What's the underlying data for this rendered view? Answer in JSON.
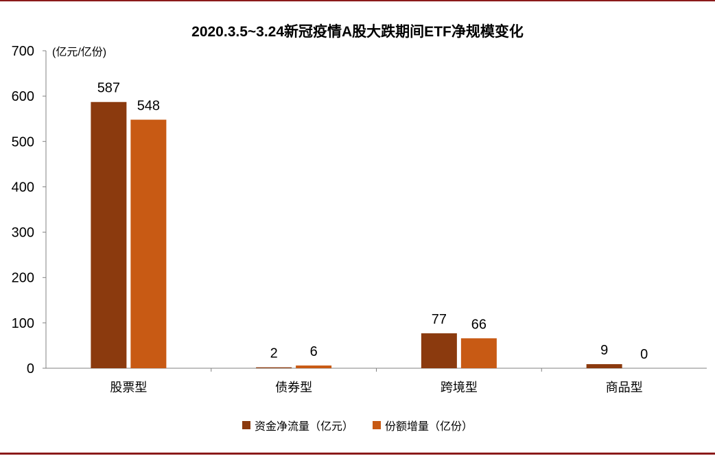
{
  "chart_data": {
    "type": "bar",
    "title": "2020.3.5~3.24新冠疫情A股大跌期间ETF净规模变化",
    "unit_label": "(亿元/亿份)",
    "categories": [
      "股票型",
      "债券型",
      "跨境型",
      "商品型"
    ],
    "series": [
      {
        "name": "资金净流量（亿元）",
        "color": "#8B3A0E",
        "values": [
          587,
          2,
          77,
          9
        ]
      },
      {
        "name": "份额增量（亿份）",
        "color": "#C85A14",
        "values": [
          548,
          6,
          66,
          0
        ]
      }
    ],
    "ylim": [
      0,
      700
    ],
    "yticks": [
      0,
      100,
      200,
      300,
      400,
      500,
      600,
      700
    ],
    "grid": false,
    "legend_position": "bottom"
  },
  "colors": {
    "frame_rule": "#8B1A1A",
    "axis": "#808080"
  }
}
